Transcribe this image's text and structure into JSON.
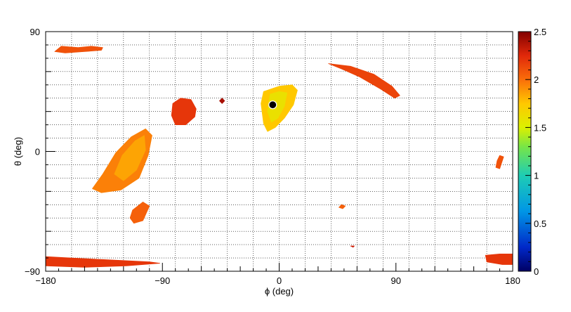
{
  "chart_data": {
    "type": "heatmap",
    "title": "",
    "xlabel": "ϕ (deg)",
    "ylabel": "θ (deg)",
    "xlim": [
      -180,
      180
    ],
    "ylim": [
      -90,
      90
    ],
    "x_ticks": [
      {
        "value": -180,
        "label": "−180"
      },
      {
        "value": -90,
        "label": "−90"
      },
      {
        "value": 0,
        "label": "0"
      },
      {
        "value": 90,
        "label": "90"
      },
      {
        "value": 180,
        "label": "180"
      }
    ],
    "y_ticks": [
      {
        "value": -90,
        "label": "−90"
      },
      {
        "value": 0,
        "label": "0"
      },
      {
        "value": 90,
        "label": "90"
      }
    ],
    "grid": true,
    "grid_style": "dotted",
    "colorbar": {
      "min": 0,
      "max": 2.5,
      "ticks": [
        {
          "value": 0,
          "label": "0"
        },
        {
          "value": 0.5,
          "label": "0.5"
        },
        {
          "value": 1,
          "label": "1"
        },
        {
          "value": 1.5,
          "label": "1.5"
        },
        {
          "value": 2,
          "label": "2"
        },
        {
          "value": 2.5,
          "label": "2.5"
        }
      ]
    },
    "regions": [
      {
        "points": [
          [
            -168,
            79
          ],
          [
            -155,
            78
          ],
          [
            -145,
            79
          ],
          [
            -136,
            78
          ],
          [
            -137,
            76
          ],
          [
            -150,
            75
          ],
          [
            -165,
            74
          ],
          [
            -173,
            75
          ]
        ],
        "value": 2.1
      },
      {
        "points": [
          [
            -114,
            11
          ],
          [
            -103,
            17
          ],
          [
            -98,
            12
          ],
          [
            -101,
            -3
          ],
          [
            -108,
            -20
          ],
          [
            -122,
            -29
          ],
          [
            -137,
            -31
          ],
          [
            -144,
            -28
          ],
          [
            -136,
            -17
          ],
          [
            -126,
            -1
          ]
        ],
        "value": 1.95
      },
      {
        "points": [
          [
            -111,
            8
          ],
          [
            -104,
            12
          ],
          [
            -103,
            1
          ],
          [
            -110,
            -14
          ],
          [
            -120,
            -22
          ],
          [
            -127,
            -17
          ],
          [
            -121,
            -3
          ]
        ],
        "value": 1.85
      },
      {
        "points": [
          [
            -68,
            39
          ],
          [
            -64,
            32
          ],
          [
            -65,
            26
          ],
          [
            -72,
            20
          ],
          [
            -80,
            20
          ],
          [
            -83,
            27
          ],
          [
            -82,
            36
          ],
          [
            -76,
            40
          ]
        ],
        "value": 2.2
      },
      {
        "points": [
          [
            -105,
            -38
          ],
          [
            -100,
            -41
          ],
          [
            -105,
            -52
          ],
          [
            -112,
            -54
          ],
          [
            -115,
            -50
          ],
          [
            -113,
            -44
          ]
        ],
        "value": 2.05
      },
      {
        "points": [
          [
            -44,
            40
          ],
          [
            -42,
            38
          ],
          [
            -44,
            36
          ],
          [
            -46,
            38
          ]
        ],
        "value": 2.4
      },
      {
        "points": [
          [
            -12,
            45
          ],
          [
            0,
            49
          ],
          [
            10,
            50
          ],
          [
            14,
            46
          ],
          [
            11,
            35
          ],
          [
            4,
            25
          ],
          [
            -3,
            18
          ],
          [
            -9,
            15
          ],
          [
            -12,
            21
          ],
          [
            -14,
            36
          ]
        ],
        "value": 1.75
      },
      {
        "points": [
          [
            -7,
            43
          ],
          [
            0,
            45
          ],
          [
            6,
            44
          ],
          [
            4,
            34
          ],
          [
            -1,
            25
          ],
          [
            -6,
            22
          ],
          [
            -9,
            30
          ]
        ],
        "value": 1.6
      },
      {
        "points": [
          [
            38,
            66
          ],
          [
            55,
            64
          ],
          [
            73,
            58
          ],
          [
            87,
            49
          ],
          [
            93,
            42
          ],
          [
            89,
            40
          ],
          [
            78,
            47
          ],
          [
            62,
            56
          ],
          [
            48,
            62
          ]
        ],
        "value": 2.15
      },
      {
        "points": [
          [
            48,
            -40
          ],
          [
            51,
            -41
          ],
          [
            49,
            -43
          ],
          [
            46,
            -42
          ]
        ],
        "value": 2.05
      },
      {
        "points": [
          [
            55,
            -71
          ],
          [
            58,
            -71
          ],
          [
            57,
            -72
          ]
        ],
        "value": 2.3
      },
      {
        "points": [
          [
            -180,
            -79
          ],
          [
            -160,
            -80
          ],
          [
            -120,
            -82
          ],
          [
            -100,
            -83
          ],
          [
            -92,
            -84
          ],
          [
            -118,
            -86
          ],
          [
            -150,
            -87
          ],
          [
            -180,
            -86
          ]
        ],
        "value": 2.2
      },
      {
        "points": [
          [
            159,
            -78
          ],
          [
            170,
            -77
          ],
          [
            180,
            -77
          ],
          [
            180,
            -85
          ],
          [
            172,
            -85
          ],
          [
            160,
            -83
          ]
        ],
        "value": 2.2
      },
      {
        "points": [
          [
            170,
            -3
          ],
          [
            173,
            -4
          ],
          [
            170,
            -13
          ],
          [
            167,
            -12
          ],
          [
            168,
            -7
          ]
        ],
        "value": 2.1
      }
    ],
    "marker": {
      "x": -5,
      "y": 35,
      "style": "filled-circle"
    }
  }
}
